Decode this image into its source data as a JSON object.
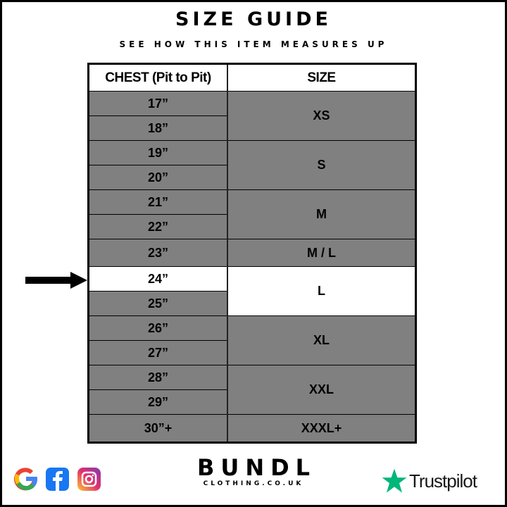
{
  "title": "SIZE GUIDE",
  "subtitle": "SEE HOW THIS ITEM MEASURES UP",
  "table": {
    "headers": [
      "CHEST (Pit to Pit)",
      "SIZE"
    ],
    "rows": [
      {
        "chest": "17”",
        "size": "XS",
        "span": 2
      },
      {
        "chest": "18”"
      },
      {
        "chest": "19”",
        "size": "S",
        "span": 2
      },
      {
        "chest": "20”"
      },
      {
        "chest": "21”",
        "size": "M",
        "span": 2
      },
      {
        "chest": "22”"
      },
      {
        "chest": "23”",
        "size": "M / L",
        "span": 1,
        "tall": true
      },
      {
        "chest": "24”",
        "size": "L",
        "span": 2,
        "highlighted": true
      },
      {
        "chest": "25”"
      },
      {
        "chest": "26”",
        "size": "XL",
        "span": 2
      },
      {
        "chest": "27”"
      },
      {
        "chest": "28”",
        "size": "XXL",
        "span": 2
      },
      {
        "chest": "29”"
      },
      {
        "chest": "30”+",
        "size": "XXXL+",
        "span": 1,
        "tall": true
      }
    ],
    "highlighted_chest": "24”",
    "highlighted_size": "L"
  },
  "colors": {
    "cell_bg": "#808080",
    "highlight_bg": "#ffffff",
    "trustpilot_green": "#00b67a"
  },
  "footer": {
    "social_icons": [
      "google-icon",
      "facebook-icon",
      "instagram-icon"
    ],
    "brand_name": "BUNDL",
    "brand_sub": "CLOTHING.CO.UK",
    "trustpilot": "Trustpilot"
  }
}
